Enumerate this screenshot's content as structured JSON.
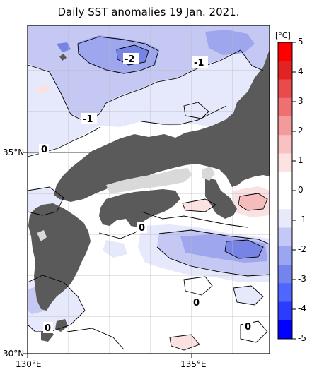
{
  "title": "Daily SST anomalies 19 Jan. 2021.",
  "axes": {
    "lat_labels": [
      "35°N",
      "30°N"
    ],
    "lon_labels": [
      "130°E",
      "135°E"
    ]
  },
  "colorbar": {
    "unit": "[°C]",
    "ticks": [
      "5",
      "4",
      "3",
      "2",
      "1",
      "0",
      "-1",
      "-2",
      "-3",
      "-4",
      "-5"
    ],
    "colors": [
      "#0000ff",
      "#2b3bff",
      "#4f66ff",
      "#7484ef",
      "#9aa6f0",
      "#c3c8f6",
      "#e8e9fb",
      "#ffffff",
      "#ffffff",
      "#fde2e2",
      "#f9c1c1",
      "#f39a9a",
      "#ee7070",
      "#e94a4a",
      "#e32222",
      "#ff0000"
    ]
  },
  "contour_labels": [
    "-2",
    "-1",
    "-1",
    "0",
    "0",
    "0",
    "0",
    "0"
  ],
  "palette": {
    "land": "#5a5a5a",
    "lake": "#d9d9d9",
    "blue1": "#e6e8fb",
    "blue2": "#c4c8f3",
    "blue3": "#9ea7ee",
    "blue4": "#7684e6",
    "pink1": "#fbe2e2",
    "pink2": "#f5bcbc"
  }
}
